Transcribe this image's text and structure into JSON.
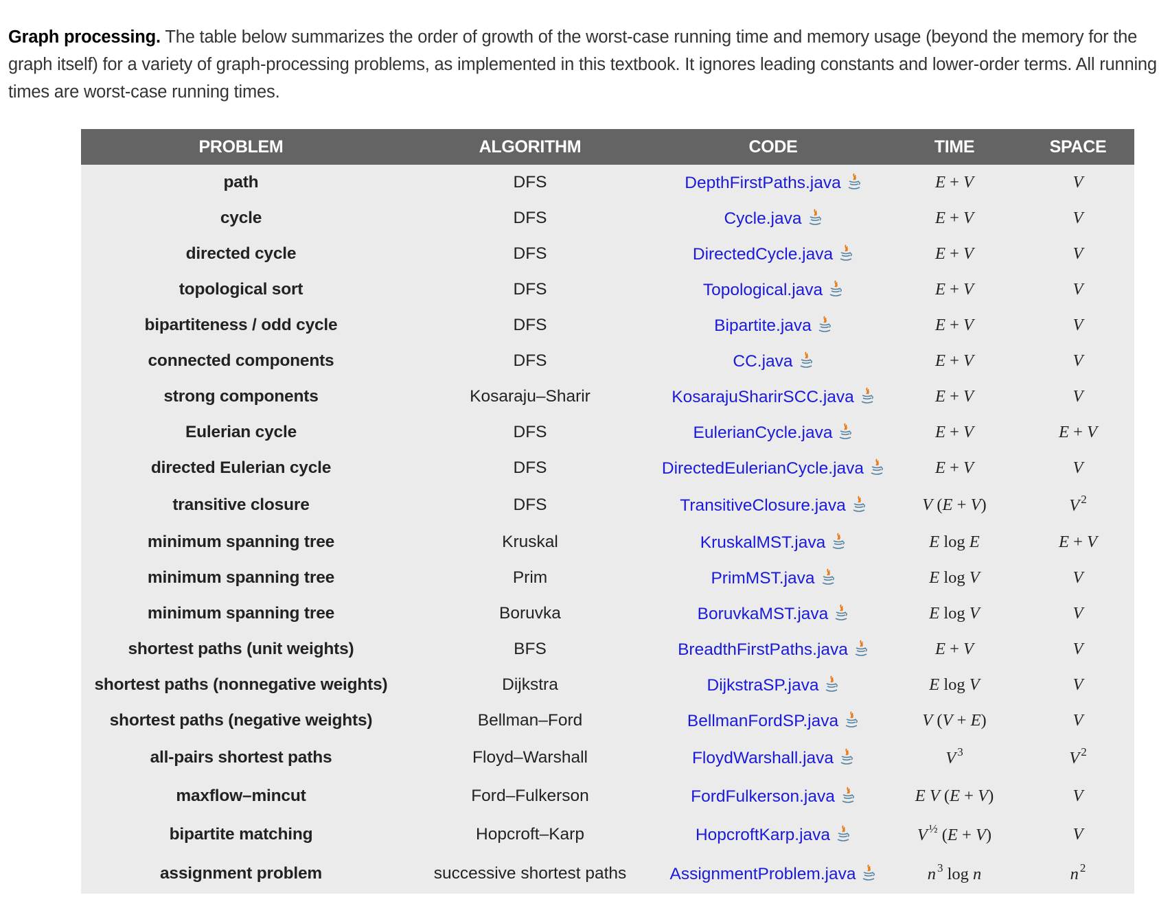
{
  "intro": {
    "lead": "Graph processing.",
    "text": " The table below summarizes the order of growth of the worst-case running time and memory usage (beyond the memory for the graph itself) for a variety of graph-processing problems, as implemented in this textbook. It ignores leading constants and lower-order terms. All running times are worst-case running times."
  },
  "table": {
    "headers": [
      "PROBLEM",
      "ALGORITHM",
      "CODE",
      "TIME",
      "SPACE"
    ],
    "rows": [
      {
        "problem": "path",
        "algorithm": "DFS",
        "code": "DepthFirstPaths.java",
        "time": "E + V",
        "space": "V"
      },
      {
        "problem": "cycle",
        "algorithm": "DFS",
        "code": "Cycle.java",
        "time": "E + V",
        "space": "V"
      },
      {
        "problem": "directed cycle",
        "algorithm": "DFS",
        "code": "DirectedCycle.java",
        "time": "E + V",
        "space": "V"
      },
      {
        "problem": "topological sort",
        "algorithm": "DFS",
        "code": "Topological.java",
        "time": "E + V",
        "space": "V"
      },
      {
        "problem": "bipartiteness / odd cycle",
        "algorithm": "DFS",
        "code": "Bipartite.java",
        "time": "E + V",
        "space": "V"
      },
      {
        "problem": "connected components",
        "algorithm": "DFS",
        "code": "CC.java",
        "time": "E + V",
        "space": "V"
      },
      {
        "problem": "strong components",
        "algorithm": "Kosaraju–Sharir",
        "code": "KosarajuSharirSCC.java",
        "time": "E + V",
        "space": "V"
      },
      {
        "problem": "Eulerian cycle",
        "algorithm": "DFS",
        "code": "EulerianCycle.java",
        "time": "E + V",
        "space": "E + V"
      },
      {
        "problem": "directed Eulerian cycle",
        "algorithm": "DFS",
        "code": "DirectedEulerianCycle.java",
        "time": "E + V",
        "space": "V"
      },
      {
        "problem": "transitive closure",
        "algorithm": "DFS",
        "code": "TransitiveClosure.java",
        "time": "V (E + V)",
        "space": "V 2"
      },
      {
        "problem": "minimum spanning tree",
        "algorithm": "Kruskal",
        "code": "KruskalMST.java",
        "time": "E log E",
        "space": "E + V"
      },
      {
        "problem": "minimum spanning tree",
        "algorithm": "Prim",
        "code": "PrimMST.java",
        "time": "E log V",
        "space": "V"
      },
      {
        "problem": "minimum spanning tree",
        "algorithm": "Boruvka",
        "code": "BoruvkaMST.java",
        "time": "E log V",
        "space": "V"
      },
      {
        "problem": "shortest paths (unit weights)",
        "algorithm": "BFS",
        "code": "BreadthFirstPaths.java",
        "time": "E + V",
        "space": "V"
      },
      {
        "problem": "shortest paths (nonnegative weights)",
        "algorithm": "Dijkstra",
        "code": "DijkstraSP.java",
        "time": "E log V",
        "space": "V"
      },
      {
        "problem": "shortest paths (negative weights)",
        "algorithm": "Bellman–Ford",
        "code": "BellmanFordSP.java",
        "time": "V (V + E)",
        "space": "V"
      },
      {
        "problem": "all-pairs shortest paths",
        "algorithm": "Floyd–Warshall",
        "code": "FloydWarshall.java",
        "time": "V 3",
        "space": "V 2"
      },
      {
        "problem": "maxflow–mincut",
        "algorithm": "Ford–Fulkerson",
        "code": "FordFulkerson.java",
        "time": "E V (E + V)",
        "space": "V"
      },
      {
        "problem": "bipartite matching",
        "algorithm": "Hopcroft–Karp",
        "code": "HopcroftKarp.java",
        "time": "V ½ (E + V)",
        "space": "V"
      },
      {
        "problem": "assignment problem",
        "algorithm": "successive shortest paths",
        "code": "AssignmentProblem.java",
        "time": "n 3 log n",
        "space": "n 2"
      }
    ]
  },
  "icons": {
    "code_link": "java-coffee-cup-icon"
  },
  "colors": {
    "header_bg": "#646464",
    "row_bg": "#ebebeb",
    "link": "#1a1ad8"
  }
}
